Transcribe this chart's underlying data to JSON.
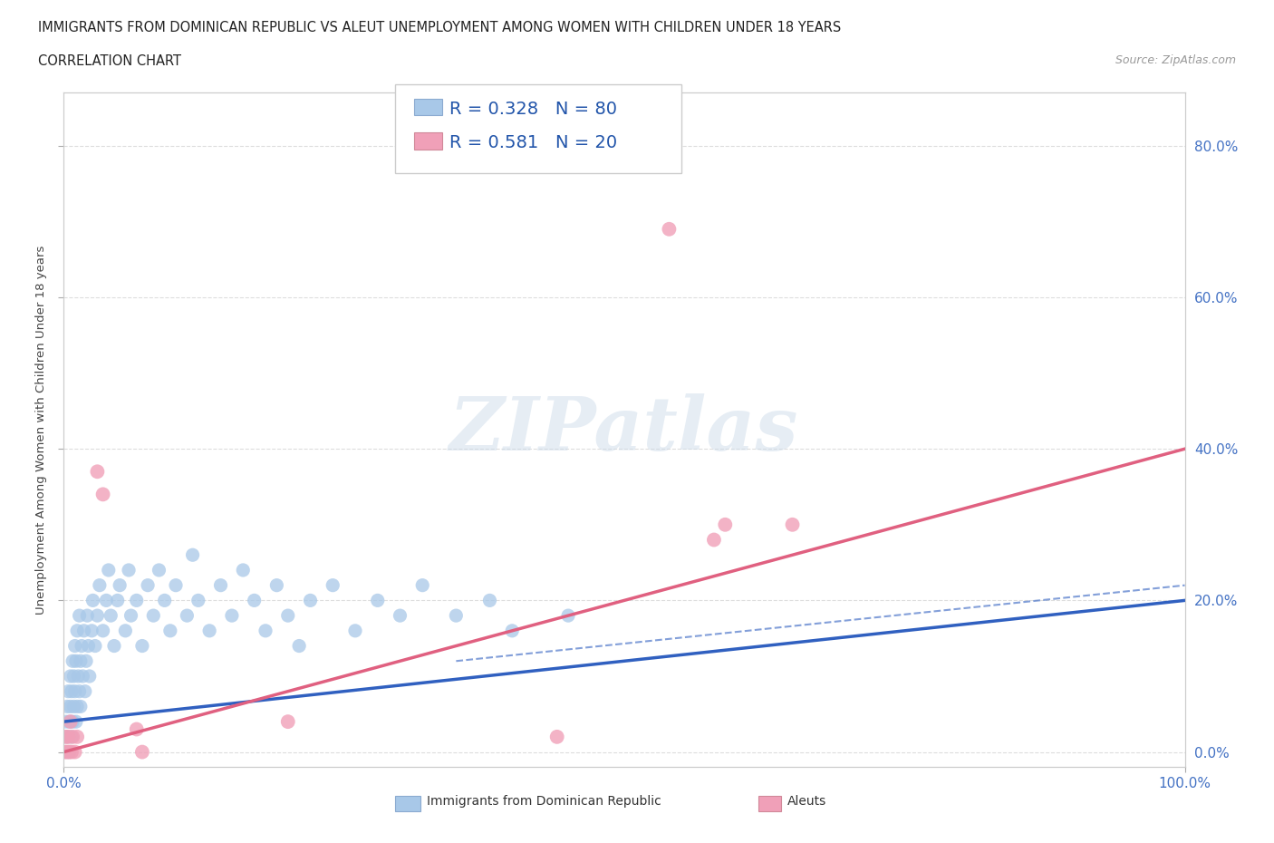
{
  "title_line1": "IMMIGRANTS FROM DOMINICAN REPUBLIC VS ALEUT UNEMPLOYMENT AMONG WOMEN WITH CHILDREN UNDER 18 YEARS",
  "title_line2": "CORRELATION CHART",
  "source": "Source: ZipAtlas.com",
  "ylabel": "Unemployment Among Women with Children Under 18 years",
  "xlim": [
    0.0,
    1.0
  ],
  "ylim": [
    -0.02,
    0.87
  ],
  "yticks": [
    0.0,
    0.2,
    0.4,
    0.6,
    0.8
  ],
  "ytick_labels": [
    "0.0%",
    "20.0%",
    "40.0%",
    "60.0%",
    "80.0%"
  ],
  "xtick_labels": [
    "0.0%",
    "100.0%"
  ],
  "blue_color": "#A8C8E8",
  "pink_color": "#F0A0B8",
  "blue_line_color": "#3060C0",
  "pink_line_color": "#E06080",
  "blue_scatter": [
    [
      0.001,
      0.02
    ],
    [
      0.002,
      0.04
    ],
    [
      0.003,
      0.0
    ],
    [
      0.003,
      0.06
    ],
    [
      0.004,
      0.02
    ],
    [
      0.004,
      0.08
    ],
    [
      0.005,
      0.0
    ],
    [
      0.005,
      0.04
    ],
    [
      0.006,
      0.06
    ],
    [
      0.006,
      0.1
    ],
    [
      0.007,
      0.02
    ],
    [
      0.007,
      0.08
    ],
    [
      0.008,
      0.04
    ],
    [
      0.008,
      0.12
    ],
    [
      0.009,
      0.06
    ],
    [
      0.009,
      0.1
    ],
    [
      0.01,
      0.08
    ],
    [
      0.01,
      0.14
    ],
    [
      0.011,
      0.04
    ],
    [
      0.011,
      0.12
    ],
    [
      0.012,
      0.06
    ],
    [
      0.012,
      0.16
    ],
    [
      0.013,
      0.1
    ],
    [
      0.014,
      0.08
    ],
    [
      0.014,
      0.18
    ],
    [
      0.015,
      0.12
    ],
    [
      0.015,
      0.06
    ],
    [
      0.016,
      0.14
    ],
    [
      0.017,
      0.1
    ],
    [
      0.018,
      0.16
    ],
    [
      0.019,
      0.08
    ],
    [
      0.02,
      0.12
    ],
    [
      0.021,
      0.18
    ],
    [
      0.022,
      0.14
    ],
    [
      0.023,
      0.1
    ],
    [
      0.025,
      0.16
    ],
    [
      0.026,
      0.2
    ],
    [
      0.028,
      0.14
    ],
    [
      0.03,
      0.18
    ],
    [
      0.032,
      0.22
    ],
    [
      0.035,
      0.16
    ],
    [
      0.038,
      0.2
    ],
    [
      0.04,
      0.24
    ],
    [
      0.042,
      0.18
    ],
    [
      0.045,
      0.14
    ],
    [
      0.048,
      0.2
    ],
    [
      0.05,
      0.22
    ],
    [
      0.055,
      0.16
    ],
    [
      0.058,
      0.24
    ],
    [
      0.06,
      0.18
    ],
    [
      0.065,
      0.2
    ],
    [
      0.07,
      0.14
    ],
    [
      0.075,
      0.22
    ],
    [
      0.08,
      0.18
    ],
    [
      0.085,
      0.24
    ],
    [
      0.09,
      0.2
    ],
    [
      0.095,
      0.16
    ],
    [
      0.1,
      0.22
    ],
    [
      0.11,
      0.18
    ],
    [
      0.115,
      0.26
    ],
    [
      0.12,
      0.2
    ],
    [
      0.13,
      0.16
    ],
    [
      0.14,
      0.22
    ],
    [
      0.15,
      0.18
    ],
    [
      0.16,
      0.24
    ],
    [
      0.17,
      0.2
    ],
    [
      0.18,
      0.16
    ],
    [
      0.19,
      0.22
    ],
    [
      0.2,
      0.18
    ],
    [
      0.21,
      0.14
    ],
    [
      0.22,
      0.2
    ],
    [
      0.24,
      0.22
    ],
    [
      0.26,
      0.16
    ],
    [
      0.28,
      0.2
    ],
    [
      0.3,
      0.18
    ],
    [
      0.32,
      0.22
    ],
    [
      0.35,
      0.18
    ],
    [
      0.38,
      0.2
    ],
    [
      0.4,
      0.16
    ],
    [
      0.45,
      0.18
    ]
  ],
  "pink_scatter": [
    [
      0.001,
      0.0
    ],
    [
      0.002,
      0.02
    ],
    [
      0.003,
      0.0
    ],
    [
      0.004,
      0.02
    ],
    [
      0.005,
      0.0
    ],
    [
      0.006,
      0.04
    ],
    [
      0.007,
      0.0
    ],
    [
      0.008,
      0.02
    ],
    [
      0.01,
      0.0
    ],
    [
      0.012,
      0.02
    ],
    [
      0.03,
      0.37
    ],
    [
      0.035,
      0.34
    ],
    [
      0.065,
      0.03
    ],
    [
      0.07,
      0.0
    ],
    [
      0.2,
      0.04
    ],
    [
      0.44,
      0.02
    ],
    [
      0.54,
      0.69
    ],
    [
      0.58,
      0.28
    ],
    [
      0.59,
      0.3
    ],
    [
      0.65,
      0.3
    ]
  ],
  "blue_line": [
    [
      0.0,
      0.04
    ],
    [
      1.0,
      0.2
    ]
  ],
  "pink_line": [
    [
      0.0,
      0.0
    ],
    [
      1.0,
      0.4
    ]
  ],
  "blue_dash_line": [
    [
      0.35,
      0.12
    ],
    [
      1.0,
      0.22
    ]
  ],
  "watermark": "ZIPatlas",
  "background_color": "#FFFFFF",
  "grid_color": "#DDDDDD",
  "tick_color": "#4472C4",
  "title_color": "#222222",
  "source_color": "#999999"
}
